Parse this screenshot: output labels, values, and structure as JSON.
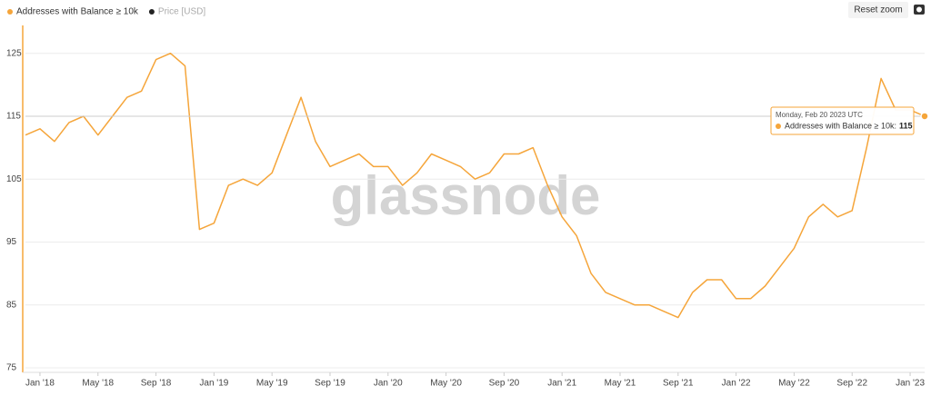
{
  "chart_data": {
    "type": "line",
    "series": [
      {
        "name": "Addresses with Balance ≥ 10k",
        "color": "#f5a53a",
        "values": [
          112,
          113,
          111,
          114,
          115,
          112,
          115,
          118,
          119,
          124,
          125,
          123,
          97,
          98,
          104,
          105,
          104,
          106,
          112,
          118,
          111,
          107,
          108,
          109,
          107,
          107,
          104,
          106,
          109,
          108,
          107,
          105,
          106,
          109,
          109,
          110,
          104,
          99,
          96,
          90,
          87,
          86,
          85,
          85,
          84,
          83,
          87,
          89,
          89,
          86,
          86,
          88,
          91,
          94,
          99,
          101,
          99,
          100,
          110,
          121,
          116,
          116,
          115
        ]
      }
    ],
    "x": [
      "2017-12",
      "2018-01",
      "2018-02",
      "2018-03",
      "2018-04",
      "2018-05",
      "2018-06",
      "2018-07",
      "2018-08",
      "2018-09",
      "2018-10",
      "2018-11",
      "2018-12",
      "2019-01",
      "2019-02",
      "2019-03",
      "2019-04",
      "2019-05",
      "2019-06",
      "2019-07",
      "2019-08",
      "2019-09",
      "2019-10",
      "2019-11",
      "2019-12",
      "2020-01",
      "2020-02",
      "2020-03",
      "2020-04",
      "2020-05",
      "2020-06",
      "2020-07",
      "2020-08",
      "2020-09",
      "2020-10",
      "2020-11",
      "2020-12",
      "2021-01",
      "2021-02",
      "2021-03",
      "2021-04",
      "2021-05",
      "2021-06",
      "2021-07",
      "2021-08",
      "2021-09",
      "2021-10",
      "2021-11",
      "2021-12",
      "2022-01",
      "2022-02",
      "2022-03",
      "2022-04",
      "2022-05",
      "2022-06",
      "2022-07",
      "2022-08",
      "2022-09",
      "2022-10",
      "2022-11",
      "2022-12",
      "2023-01",
      "2023-02"
    ],
    "inactive_series": [
      {
        "name": "Price [USD]",
        "color": "#222222"
      }
    ],
    "xlim": [
      "2017-12",
      "2023-02"
    ],
    "xticks": [
      {
        "value": "2018-01",
        "label": "Jan '18"
      },
      {
        "value": "2018-05",
        "label": "May '18"
      },
      {
        "value": "2018-09",
        "label": "Sep '18"
      },
      {
        "value": "2019-01",
        "label": "Jan '19"
      },
      {
        "value": "2019-05",
        "label": "May '19"
      },
      {
        "value": "2019-09",
        "label": "Sep '19"
      },
      {
        "value": "2020-01",
        "label": "Jan '20"
      },
      {
        "value": "2020-05",
        "label": "May '20"
      },
      {
        "value": "2020-09",
        "label": "Sep '20"
      },
      {
        "value": "2021-01",
        "label": "Jan '21"
      },
      {
        "value": "2021-05",
        "label": "May '21"
      },
      {
        "value": "2021-09",
        "label": "Sep '21"
      },
      {
        "value": "2022-01",
        "label": "Jan '22"
      },
      {
        "value": "2022-05",
        "label": "May '22"
      },
      {
        "value": "2022-09",
        "label": "Sep '22"
      },
      {
        "value": "2023-01",
        "label": "Jan '23"
      }
    ],
    "ylim": [
      75,
      129
    ],
    "yticks": [
      75,
      85,
      95,
      105,
      115,
      125
    ],
    "grid": true,
    "watermark": "glassnode",
    "button": "Reset zoom",
    "tooltip": {
      "date": "Monday, Feb 20 2023 UTC",
      "label": "Addresses with Balance ≥ 10k:",
      "value": 115
    }
  }
}
